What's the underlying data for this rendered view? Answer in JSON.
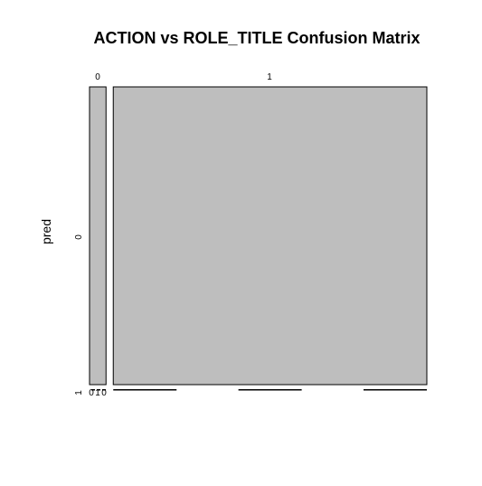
{
  "chart_data": {
    "type": "mosaic",
    "title": "ACTION vs ROLE_TITLE Confusion Matrix",
    "xlabel": "",
    "ylabel": "pred",
    "x_categories": [
      "0",
      "1"
    ],
    "y_categories": [
      "0",
      "1"
    ],
    "column_proportions": [
      0.05,
      0.95
    ],
    "cells": [
      {
        "x": "0",
        "y": "0",
        "share_of_column": 0.99
      },
      {
        "x": "0",
        "y": "1",
        "share_of_column": 0.01
      },
      {
        "x": "1",
        "y": "0",
        "share_of_column": 0.99
      },
      {
        "x": "1",
        "y": "1",
        "share_of_column": 0.01
      }
    ],
    "bottom_row_label": "1",
    "bottom_row_small_labels": [
      "0",
      "1",
      "0"
    ]
  },
  "colors": {
    "tile_fill": "#bebebe",
    "tile_stroke": "#000000",
    "background": "#ffffff"
  }
}
